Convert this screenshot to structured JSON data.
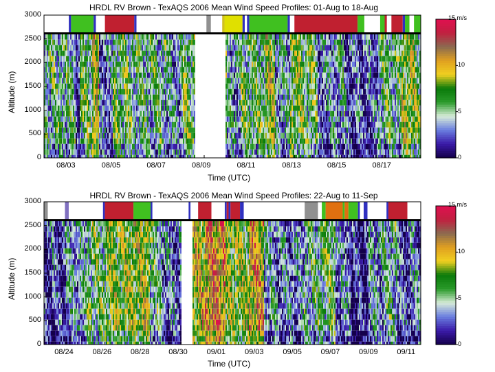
{
  "colorbar": {
    "unit_label": "15 m/s",
    "ticks": [
      "10",
      "5",
      "0"
    ],
    "tick_values": [
      10,
      5,
      0
    ],
    "range": [
      0,
      15
    ],
    "colors": [
      "#14004a",
      "#3a1aa8",
      "#6a7ee0",
      "#d8ecd8",
      "#2a9a2a",
      "#0a7a0a",
      "#f0d020",
      "#e0a020",
      "#8a6a50",
      "#c02040",
      "#e01050"
    ]
  },
  "chart_data": [
    {
      "type": "heatmap",
      "title": "HRDL RV Brown - TexAQS 2006 Mean Wind Speed Profiles: 01-Aug to 18-Aug",
      "xlabel": "Time (UTC)",
      "ylabel": "Altitude (m)",
      "ylim": [
        0,
        3000
      ],
      "yticks": [
        "0",
        "500",
        "1000",
        "1500",
        "2000",
        "2500",
        "3000"
      ],
      "xticks": [
        "08/03",
        "08/05",
        "08/07",
        "08/09",
        "08/11",
        "08/13",
        "08/15",
        "08/17"
      ],
      "xrange_days": [
        1.9,
        18.6
      ],
      "xtick_days": [
        3,
        5,
        7,
        9,
        11,
        13,
        15,
        17
      ],
      "data_altitude_max": 2600,
      "segments": [
        [
          1.9,
          3.25,
          5
        ],
        [
          3.25,
          3.45,
          1.5
        ],
        [
          3.45,
          4.0,
          6
        ],
        [
          4.0,
          4.3,
          9
        ],
        [
          4.3,
          4.9,
          3
        ],
        [
          4.9,
          5.8,
          6
        ],
        [
          5.8,
          7.3,
          5
        ],
        [
          7.3,
          8.0,
          4
        ],
        [
          8.0,
          8.6,
          6
        ],
        [
          8.6,
          9.9,
          0
        ],
        [
          9.9,
          10.0,
          7
        ],
        [
          10.0,
          10.6,
          4
        ],
        [
          10.6,
          11.7,
          6
        ],
        [
          11.7,
          12.1,
          8
        ],
        [
          12.1,
          12.8,
          4
        ],
        [
          12.8,
          13.3,
          7
        ],
        [
          13.3,
          14.0,
          6
        ],
        [
          14.0,
          14.6,
          3
        ],
        [
          14.6,
          15.2,
          4
        ],
        [
          15.2,
          16.7,
          2.5
        ],
        [
          16.7,
          17.7,
          5
        ],
        [
          17.7,
          18.3,
          8
        ],
        [
          18.3,
          18.6,
          6
        ]
      ],
      "top_bar": [
        [
          1.9,
          3.0,
          "#ffffff"
        ],
        [
          3.0,
          3.1,
          "#3030c0"
        ],
        [
          3.1,
          4.1,
          "#40c020"
        ],
        [
          4.1,
          4.2,
          "#3030c0"
        ],
        [
          4.2,
          4.6,
          "#ffffff"
        ],
        [
          4.6,
          5.9,
          "#c02030"
        ],
        [
          5.9,
          6.0,
          "#3030c0"
        ],
        [
          6.0,
          9.1,
          "#ffffff"
        ],
        [
          9.1,
          9.3,
          "#909090"
        ],
        [
          9.3,
          9.8,
          "#ffffff"
        ],
        [
          9.8,
          9.9,
          "#d0c020"
        ],
        [
          9.9,
          10.7,
          "#e0e000"
        ],
        [
          10.7,
          10.8,
          "#3030c0"
        ],
        [
          10.8,
          10.9,
          "#ffffff"
        ],
        [
          10.9,
          11.0,
          "#3030c0"
        ],
        [
          11.0,
          12.7,
          "#40c020"
        ],
        [
          12.7,
          12.8,
          "#3030c0"
        ],
        [
          12.8,
          13.0,
          "#ffffff"
        ],
        [
          13.0,
          15.8,
          "#c02030"
        ],
        [
          15.8,
          16.1,
          "#40c020"
        ],
        [
          16.1,
          16.8,
          "#ffffff"
        ],
        [
          16.8,
          17.0,
          "#40c020"
        ],
        [
          17.0,
          17.1,
          "#c02030"
        ],
        [
          17.1,
          17.3,
          "#ffffff"
        ],
        [
          17.3,
          17.8,
          "#c02030"
        ],
        [
          17.8,
          17.9,
          "#3030c0"
        ],
        [
          17.9,
          18.1,
          "#40c020"
        ],
        [
          18.1,
          18.3,
          "#ffffff"
        ],
        [
          18.3,
          18.6,
          "#40c020"
        ]
      ]
    },
    {
      "type": "heatmap",
      "title": "HRDL RV Brown - TexAQS 2006 Mean Wind Speed Profiles: 22-Aug to 11-Sep",
      "xlabel": "Time (UTC)",
      "ylabel": "Altitude (m)",
      "ylim": [
        0,
        3000
      ],
      "yticks": [
        "0",
        "500",
        "1000",
        "1500",
        "2000",
        "2500",
        "3000"
      ],
      "xticks": [
        "08/24",
        "08/26",
        "08/28",
        "08/30",
        "09/01",
        "09/03",
        "09/05",
        "09/07",
        "09/09",
        "09/11"
      ],
      "xrange_days": [
        22.8,
        42.6
      ],
      "xtick_days": [
        24,
        26,
        28,
        30,
        32,
        34,
        36,
        38,
        40,
        42
      ],
      "data_altitude_max": 2600,
      "segments": [
        [
          22.8,
          23.9,
          2
        ],
        [
          23.9,
          25.0,
          4
        ],
        [
          25.0,
          26.0,
          6
        ],
        [
          26.0,
          27.4,
          7.5
        ],
        [
          27.4,
          28.3,
          8
        ],
        [
          28.3,
          29.0,
          5
        ],
        [
          29.0,
          30.0,
          3
        ],
        [
          30.0,
          30.6,
          0
        ],
        [
          30.6,
          31.2,
          9
        ],
        [
          31.2,
          32.3,
          11
        ],
        [
          32.3,
          33.5,
          7.5
        ],
        [
          33.5,
          34.3,
          10
        ],
        [
          34.3,
          35.0,
          4
        ],
        [
          35.0,
          36.4,
          3
        ],
        [
          36.4,
          37.3,
          5
        ],
        [
          37.3,
          38.1,
          6
        ],
        [
          38.1,
          38.9,
          3
        ],
        [
          38.9,
          39.8,
          1.5
        ],
        [
          39.8,
          40.6,
          4
        ],
        [
          40.6,
          41.3,
          5
        ],
        [
          41.3,
          42.0,
          2
        ],
        [
          42.0,
          42.6,
          3
        ]
      ],
      "top_bar": [
        [
          22.8,
          23.0,
          "#909090"
        ],
        [
          23.0,
          23.9,
          "#ffffff"
        ],
        [
          23.9,
          24.1,
          "#8070c0"
        ],
        [
          24.1,
          25.9,
          "#ffffff"
        ],
        [
          25.9,
          26.0,
          "#3030c0"
        ],
        [
          26.0,
          27.5,
          "#c02030"
        ],
        [
          27.5,
          28.4,
          "#40c020"
        ],
        [
          28.4,
          28.5,
          "#3030c0"
        ],
        [
          28.5,
          30.4,
          "#ffffff"
        ],
        [
          30.4,
          30.5,
          "#3030c0"
        ],
        [
          30.5,
          30.9,
          "#ffffff"
        ],
        [
          30.9,
          31.6,
          "#c02030"
        ],
        [
          31.6,
          32.3,
          "#ffffff"
        ],
        [
          32.3,
          32.4,
          "#3030c0"
        ],
        [
          32.4,
          32.5,
          "#c02030"
        ],
        [
          32.5,
          32.6,
          "#3030c0"
        ],
        [
          32.6,
          33.1,
          "#c02030"
        ],
        [
          33.1,
          33.3,
          "#3030c0"
        ],
        [
          33.3,
          36.5,
          "#ffffff"
        ],
        [
          36.5,
          37.2,
          "#909090"
        ],
        [
          37.2,
          37.4,
          "#ffffff"
        ],
        [
          37.4,
          37.6,
          "#40c020"
        ],
        [
          37.6,
          38.5,
          "#e07010"
        ],
        [
          38.5,
          38.6,
          "#40c020"
        ],
        [
          38.6,
          38.8,
          "#e07010"
        ],
        [
          38.8,
          39.3,
          "#40c020"
        ],
        [
          39.3,
          39.4,
          "#3030c0"
        ],
        [
          39.4,
          39.6,
          "#ffffff"
        ],
        [
          39.6,
          39.8,
          "#3030c0"
        ],
        [
          39.8,
          40.8,
          "#ffffff"
        ],
        [
          40.8,
          40.9,
          "#3030c0"
        ],
        [
          40.9,
          41.9,
          "#c02030"
        ],
        [
          41.9,
          42.6,
          "#ffffff"
        ]
      ]
    }
  ]
}
